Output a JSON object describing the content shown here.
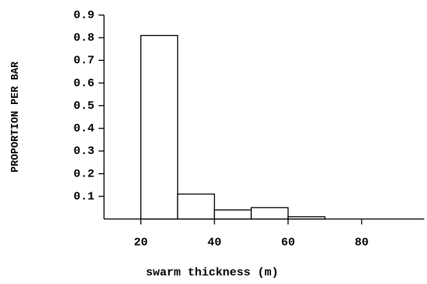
{
  "chart_data": {
    "type": "histogram",
    "xlabel": "swarm thickness (m)",
    "ylabel": "PROPORTION PER BAR",
    "bins": [
      20,
      30,
      40,
      50,
      60,
      70
    ],
    "values": [
      0.81,
      0.11,
      0.04,
      0.05,
      0.01
    ],
    "color": "#ffffff",
    "xlim": [
      10,
      97
    ],
    "xticks": [
      20,
      40,
      60,
      80
    ],
    "ylim": [
      0,
      0.9
    ],
    "yticks": [
      0.1,
      0.2,
      0.3,
      0.4,
      0.5,
      0.6,
      0.7,
      0.8,
      0.9
    ],
    "grid": false
  }
}
